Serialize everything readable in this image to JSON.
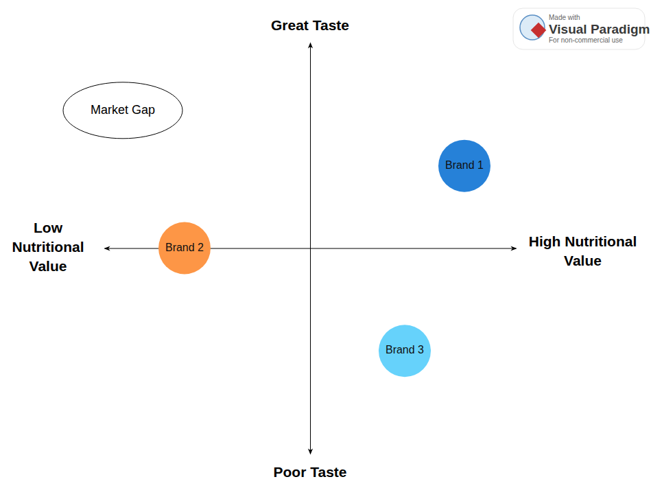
{
  "chart_data": {
    "type": "scatter",
    "x_axis_labels": [
      "Low Nutritional Value",
      "High Nutritional Value"
    ],
    "y_axis_labels": [
      "Poor Taste",
      "Great Taste"
    ],
    "xlim": [
      -1,
      1
    ],
    "ylim": [
      -1,
      1
    ],
    "tick_labels": false,
    "categories": [
      "Brand 1",
      "Brand 2",
      "Brand 3"
    ],
    "x": [
      0.75,
      -0.61,
      0.46
    ],
    "values": [
      0.4,
      0.0,
      -0.5
    ],
    "colors": [
      "#2681d8",
      "#fd9646",
      "#66d2fb"
    ],
    "annotations": [
      {
        "text": "Market Gap",
        "x": -0.91,
        "y": 0.67
      }
    ],
    "watermark": [
      "Made with",
      "Visual Paradigm",
      "For non-commercial use"
    ]
  }
}
